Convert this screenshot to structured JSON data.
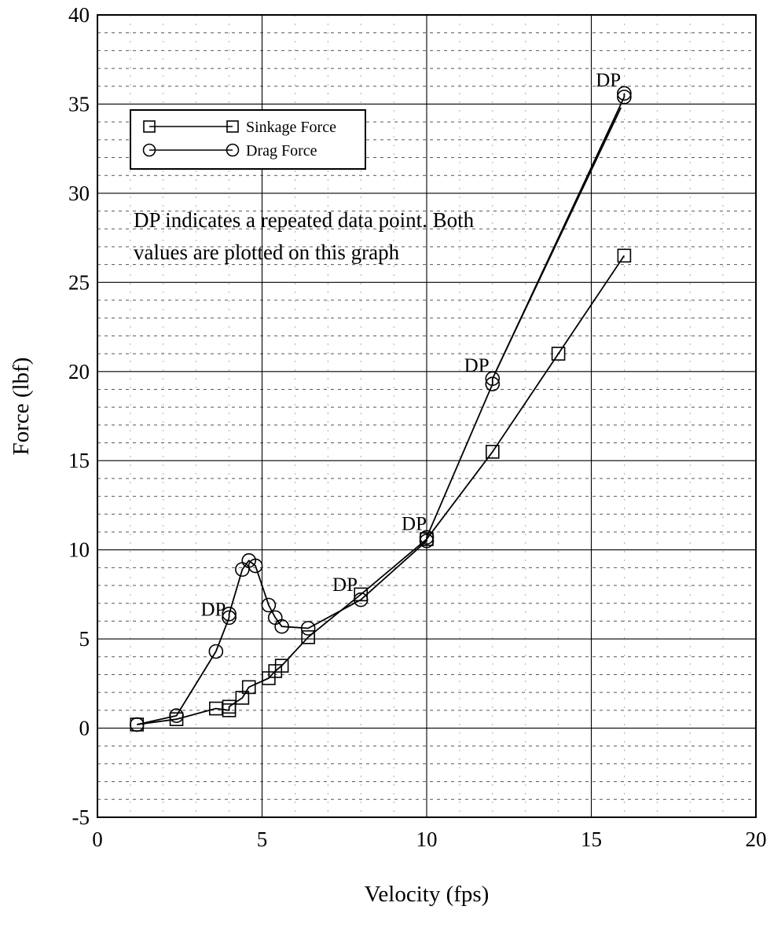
{
  "chart_data": {
    "type": "line",
    "xlabel": "Velocity (fps)",
    "ylabel": "Force (lbf)",
    "xlim": [
      0,
      20
    ],
    "ylim": [
      -5,
      40
    ],
    "x_ticks": [
      "0",
      "5",
      "10",
      "15",
      "20"
    ],
    "y_ticks": [
      "-5",
      "0",
      "5",
      "10",
      "15",
      "20",
      "25",
      "30",
      "35",
      "40"
    ],
    "grid": true,
    "legend_position": "top-left",
    "series": [
      {
        "name": "Sinkage Force",
        "marker": "square",
        "points": [
          [
            1.2,
            0.2
          ],
          [
            2.4,
            0.5
          ],
          [
            3.6,
            1.1
          ],
          [
            4.0,
            1.0
          ],
          [
            4.0,
            1.2
          ],
          [
            4.4,
            1.7
          ],
          [
            4.6,
            2.3
          ],
          [
            5.2,
            2.8
          ],
          [
            5.4,
            3.2
          ],
          [
            5.6,
            3.5
          ],
          [
            6.4,
            5.1
          ],
          [
            8.0,
            7.5
          ],
          [
            10.0,
            10.6
          ],
          [
            12.0,
            15.5
          ],
          [
            14.0,
            21.0
          ],
          [
            16.0,
            26.5
          ]
        ]
      },
      {
        "name": "Drag Force",
        "marker": "circle",
        "points": [
          [
            1.2,
            0.2
          ],
          [
            2.4,
            0.7
          ],
          [
            3.6,
            4.3
          ],
          [
            4.0,
            6.2
          ],
          [
            4.0,
            6.4
          ],
          [
            4.4,
            8.9
          ],
          [
            4.6,
            9.4
          ],
          [
            4.8,
            9.1
          ],
          [
            5.2,
            6.9
          ],
          [
            5.4,
            6.2
          ],
          [
            5.6,
            5.7
          ],
          [
            6.4,
            5.6
          ],
          [
            8.0,
            7.2
          ],
          [
            10.0,
            10.5
          ],
          [
            10.0,
            10.7
          ],
          [
            12.0,
            19.3
          ],
          [
            12.0,
            19.6
          ],
          [
            16.0,
            35.4
          ],
          [
            16.0,
            35.6
          ]
        ]
      }
    ],
    "annotation": [
      "DP indicates a repeated data point. Both",
      "values are plotted on this graph"
    ],
    "dp_labels": [
      {
        "text": "DP",
        "x": 3.9,
        "y": 6.3
      },
      {
        "text": "DP",
        "x": 7.9,
        "y": 7.7
      },
      {
        "text": "DP",
        "x": 10.0,
        "y": 11.1
      },
      {
        "text": "DP",
        "x": 11.9,
        "y": 20.0
      },
      {
        "text": "DP",
        "x": 15.9,
        "y": 36.0
      }
    ]
  }
}
